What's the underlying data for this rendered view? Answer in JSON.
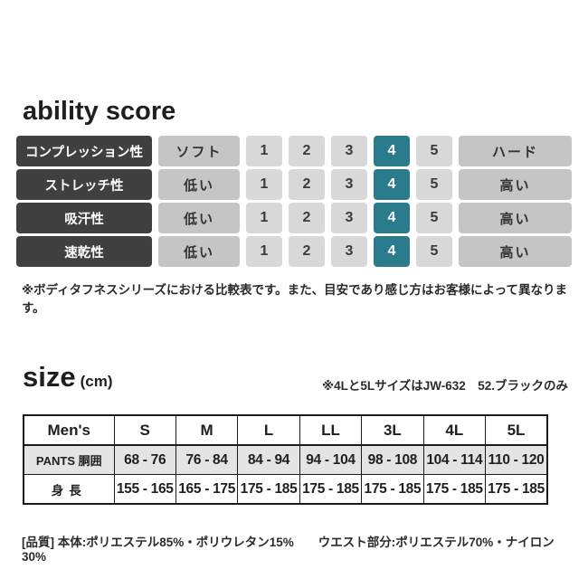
{
  "ability": {
    "title": "ability score",
    "scale": [
      "1",
      "2",
      "3",
      "4",
      "5"
    ],
    "selected_color": "#2a7b8c",
    "rows": [
      {
        "label": "コンプレッション性",
        "min_label": "ソフト",
        "max_label": "ハード",
        "selected": 4
      },
      {
        "label": "ストレッチ性",
        "min_label": "低い",
        "max_label": "高い",
        "selected": 4
      },
      {
        "label": "吸汗性",
        "min_label": "低い",
        "max_label": "高い",
        "selected": 4
      },
      {
        "label": "速乾性",
        "min_label": "低い",
        "max_label": "高い",
        "selected": 4
      }
    ],
    "note": "※ボディタフネスシリーズにおける比較表です。また、目安であり感じ方はお客様によって異なります。"
  },
  "size": {
    "title": "size",
    "unit": "(cm)",
    "note": "※4Lと5LサイズはJW-632　52.ブラックのみ",
    "table": {
      "headers": [
        "Men's",
        "S",
        "M",
        "L",
        "LL",
        "3L",
        "4L",
        "5L"
      ],
      "rows": [
        {
          "label": "PANTS 胴囲",
          "values": [
            "68 - 76",
            "76 - 84",
            "84 - 94",
            "94 - 104",
            "98 - 108",
            "104 - 114",
            "110 - 120"
          ]
        },
        {
          "label": "身長",
          "values": [
            "155 - 165",
            "165 - 175",
            "175 - 185",
            "175 - 185",
            "175 - 185",
            "175 - 185",
            "175 - 185"
          ]
        }
      ]
    }
  },
  "quality_note": "[品質] 本体:ポリエステル85%・ポリウレタン15%　　ウエスト部分:ポリエステル70%・ナイロン30%"
}
